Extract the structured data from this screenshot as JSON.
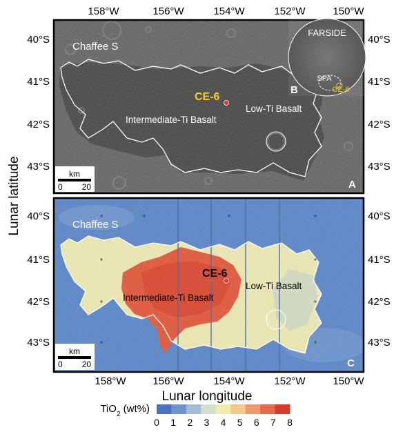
{
  "axes": {
    "xlabel": "Lunar longitude",
    "ylabel": "Lunar latitude",
    "lon_ticks": [
      "158°W",
      "156°W",
      "154°W",
      "152°W",
      "150°W"
    ],
    "lat_ticks": [
      "40°S",
      "41°S",
      "42°S",
      "43°S"
    ]
  },
  "panel_a": {
    "id": "A",
    "region_label": "Chaffee S",
    "site_label": "CE-6",
    "unit_intermediate": "Intermediate-Ti Basalt",
    "unit_low": "Low-Ti Basalt",
    "scale_title": "km",
    "scale_min": "0",
    "scale_max": "20"
  },
  "panel_b": {
    "id": "B",
    "farside_label": "FARSIDE",
    "basin_label": "SPA",
    "site_label": "CE-6"
  },
  "panel_c": {
    "id": "C",
    "region_label": "Chaffee S",
    "site_label": "CE-6",
    "unit_intermediate": "Intermediate-Ti Basalt",
    "unit_low": "Low-Ti Basalt",
    "scale_title": "km",
    "scale_min": "0",
    "scale_max": "20"
  },
  "colorbar": {
    "label": "TiO",
    "label_sub": "2",
    "label_unit": " (wt%)",
    "ticks": [
      "0",
      "1",
      "2",
      "3",
      "4",
      "5",
      "6",
      "7",
      "8"
    ],
    "colors": [
      "#4a72c0",
      "#6f93cc",
      "#a3bcd3",
      "#d3dfc9",
      "#f0ecaf",
      "#f3c98a",
      "#ee9a6a",
      "#e56a4c",
      "#d63b2f"
    ]
  },
  "colors": {
    "site_marker": "#e8322d",
    "site_label_a": "#f2d021",
    "outline": "#ffffff"
  }
}
